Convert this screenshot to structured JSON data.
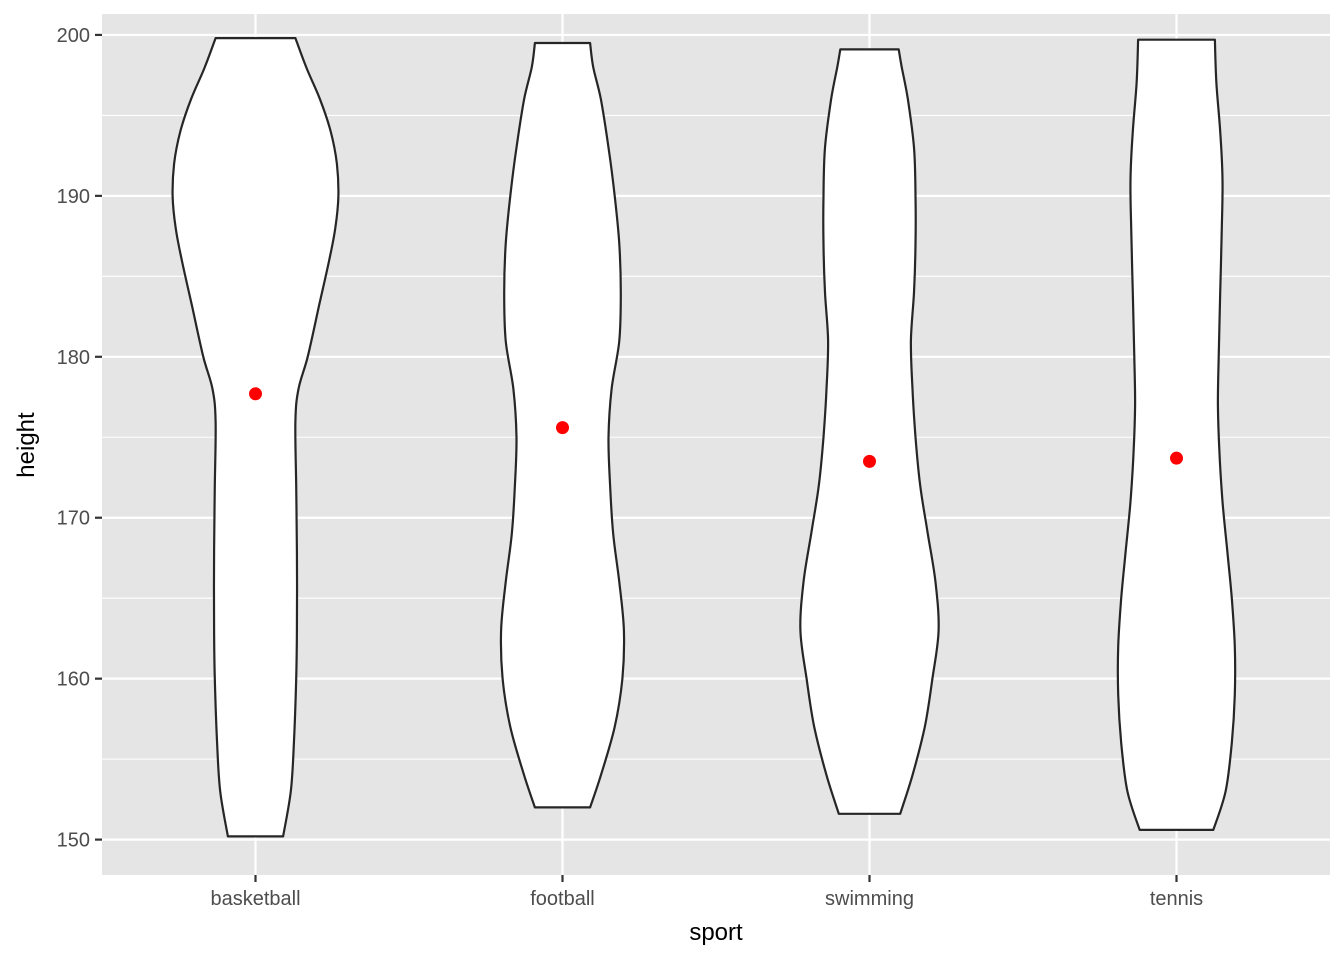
{
  "chart_data": {
    "type": "violin",
    "xlabel": "sport",
    "ylabel": "height",
    "ylim": [
      147.8,
      201.3
    ],
    "y_ticks": [
      150,
      160,
      170,
      180,
      190,
      200
    ],
    "categories": [
      "basketball",
      "football",
      "swimming",
      "tennis"
    ],
    "grid": true,
    "colors": {
      "panel": "#e5e5e5",
      "grid": "#ffffff",
      "violin_fill": "#ffffff",
      "violin_stroke": "#262626",
      "point": "#ff0000"
    },
    "violins": [
      {
        "category": "basketball",
        "min": 150.2,
        "max": 199.8,
        "mean_point": 177.7,
        "profile": [
          [
            150.2,
            0.18
          ],
          [
            153,
            0.23
          ],
          [
            156,
            0.25
          ],
          [
            160,
            0.265
          ],
          [
            163,
            0.27
          ],
          [
            168,
            0.27
          ],
          [
            172,
            0.265
          ],
          [
            176,
            0.26
          ],
          [
            178,
            0.28
          ],
          [
            180,
            0.34
          ],
          [
            183,
            0.41
          ],
          [
            186,
            0.48
          ],
          [
            188,
            0.52
          ],
          [
            190,
            0.54
          ],
          [
            192,
            0.53
          ],
          [
            194,
            0.49
          ],
          [
            196,
            0.42
          ],
          [
            198,
            0.33
          ],
          [
            199.8,
            0.26
          ]
        ]
      },
      {
        "category": "football",
        "min": 152.0,
        "max": 199.5,
        "mean_point": 175.6,
        "profile": [
          [
            152,
            0.18
          ],
          [
            154,
            0.25
          ],
          [
            157,
            0.34
          ],
          [
            160,
            0.39
          ],
          [
            163,
            0.4
          ],
          [
            166,
            0.37
          ],
          [
            169,
            0.33
          ],
          [
            172,
            0.31
          ],
          [
            175,
            0.3
          ],
          [
            178,
            0.32
          ],
          [
            181,
            0.37
          ],
          [
            184,
            0.38
          ],
          [
            187,
            0.37
          ],
          [
            190,
            0.34
          ],
          [
            193,
            0.3
          ],
          [
            196,
            0.25
          ],
          [
            198,
            0.2
          ],
          [
            199.5,
            0.18
          ]
        ]
      },
      {
        "category": "swimming",
        "min": 151.6,
        "max": 199.1,
        "mean_point": 173.5,
        "profile": [
          [
            151.6,
            0.2
          ],
          [
            154,
            0.28
          ],
          [
            157,
            0.36
          ],
          [
            160,
            0.41
          ],
          [
            163,
            0.45
          ],
          [
            166,
            0.43
          ],
          [
            169,
            0.38
          ],
          [
            172,
            0.33
          ],
          [
            175,
            0.3
          ],
          [
            178,
            0.28
          ],
          [
            181,
            0.27
          ],
          [
            184,
            0.29
          ],
          [
            187,
            0.3
          ],
          [
            190,
            0.3
          ],
          [
            193,
            0.29
          ],
          [
            196,
            0.25
          ],
          [
            198,
            0.21
          ],
          [
            199.1,
            0.19
          ]
        ]
      },
      {
        "category": "tennis",
        "min": 150.6,
        "max": 199.7,
        "mean_point": 173.7,
        "profile": [
          [
            150.6,
            0.24
          ],
          [
            153,
            0.32
          ],
          [
            156,
            0.36
          ],
          [
            159,
            0.38
          ],
          [
            162,
            0.38
          ],
          [
            165,
            0.36
          ],
          [
            168,
            0.33
          ],
          [
            171,
            0.3
          ],
          [
            174,
            0.28
          ],
          [
            177,
            0.27
          ],
          [
            180,
            0.275
          ],
          [
            184,
            0.285
          ],
          [
            188,
            0.295
          ],
          [
            191,
            0.3
          ],
          [
            194,
            0.285
          ],
          [
            197,
            0.26
          ],
          [
            199.7,
            0.25
          ]
        ]
      }
    ]
  }
}
